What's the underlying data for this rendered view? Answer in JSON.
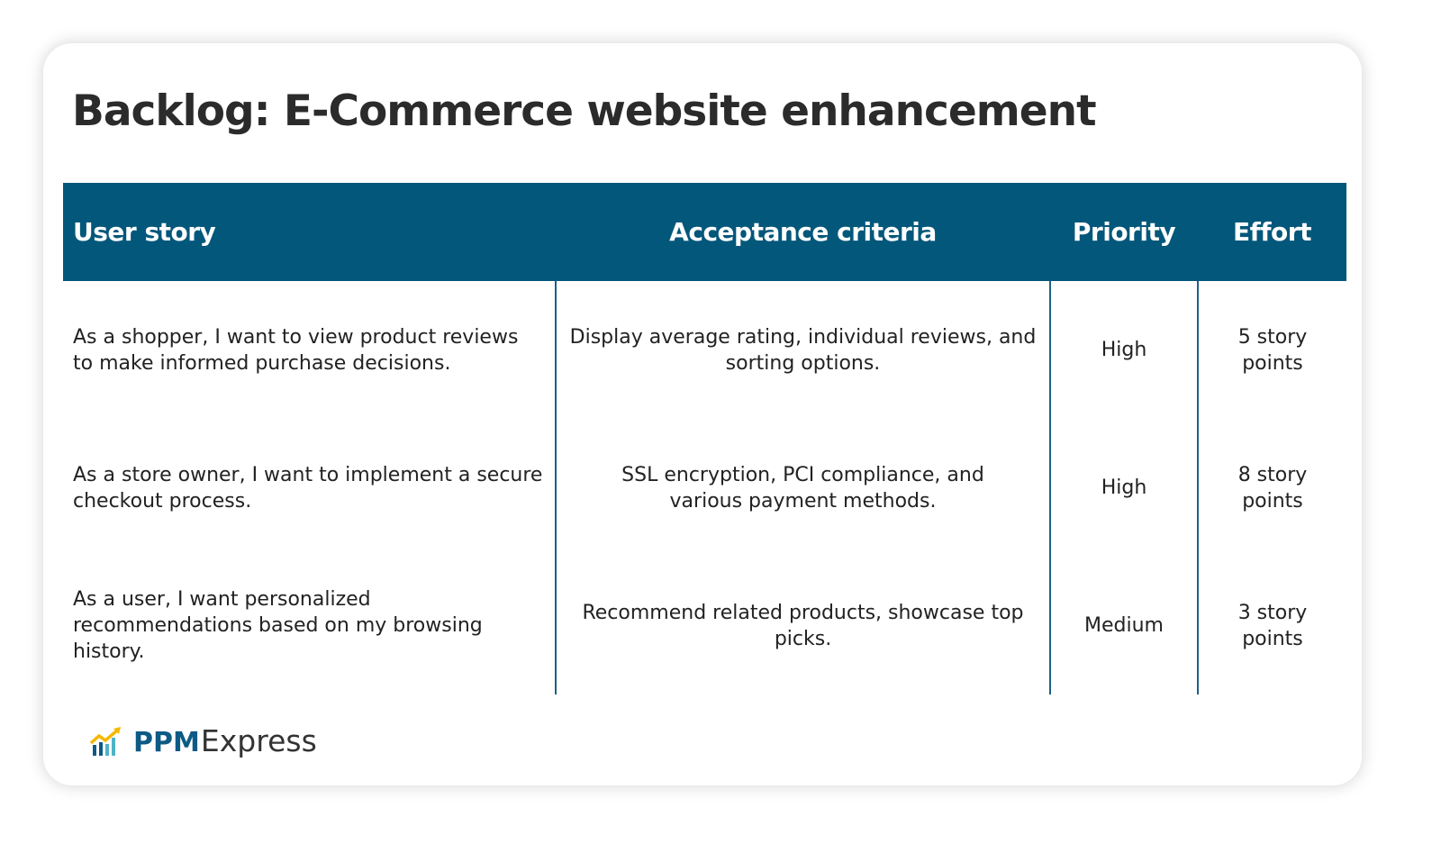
{
  "title": "Backlog: E-Commerce website enhancement",
  "table": {
    "headers": [
      "User story",
      "Acceptance criteria",
      "Priority",
      "Effort"
    ],
    "rows": [
      {
        "story": "As a shopper, I want to view product reviews to make informed purchase decisions.",
        "criteria": "Display average rating, individual reviews, and sorting options.",
        "priority": "High",
        "effort": "5 story points"
      },
      {
        "story": "As a store owner, I want to implement a secure checkout process.",
        "criteria": "SSL encryption, PCI compliance, and various payment methods.",
        "priority": "High",
        "effort": "8 story points"
      },
      {
        "story": "As a user, I want personalized recommendations based on my browsing history.",
        "criteria": "Recommend related products, showcase top picks.",
        "priority": "Medium",
        "effort": "3 story points"
      }
    ]
  },
  "logo": {
    "brand": "PPM",
    "suffix": "Express",
    "icon": "chart-growth-icon"
  },
  "colors": {
    "header": "#03577a",
    "brand": "#0d5a85",
    "accent": "#f5b800"
  }
}
